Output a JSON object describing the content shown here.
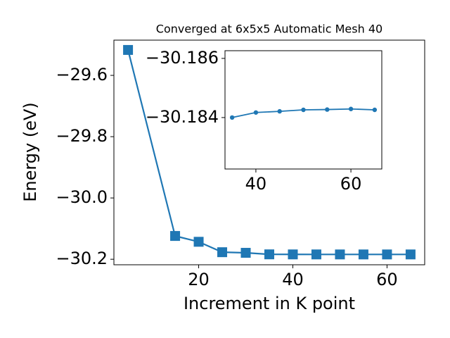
{
  "chart_data": [
    {
      "type": "line",
      "title": "Converged at 6x5x5 Automatic Mesh 40",
      "x_label": "Increment in K point",
      "y_label": "Energy (eV)",
      "x": [
        5,
        15,
        20,
        25,
        30,
        35,
        40,
        45,
        50,
        55,
        60,
        65
      ],
      "series": [
        {
          "color": "#1f77b4",
          "marker": "square",
          "values": [
            -29.517,
            -30.124,
            -30.143,
            -30.177,
            -30.179,
            -30.184,
            -30.18417,
            -30.18421,
            -30.18426,
            -30.18427,
            -30.18429,
            -30.18426
          ]
        }
      ],
      "xlim": [
        2,
        68
      ],
      "ylim": [
        -30.218,
        -29.485
      ],
      "xticks": [
        20,
        40,
        60
      ],
      "yticks": [
        {
          "value": -30.2,
          "label": "−30.2"
        },
        {
          "value": -30.0,
          "label": "−30.0"
        },
        {
          "value": -29.8,
          "label": "−29.8"
        },
        {
          "value": -29.6,
          "label": "−29.6"
        }
      ]
    },
    {
      "type": "line",
      "x": [
        35,
        40,
        45,
        50,
        55,
        60,
        65
      ],
      "series": [
        {
          "color": "#1f77b4",
          "marker": "circle",
          "values": [
            -30.184,
            -30.18417,
            -30.18421,
            -30.18426,
            -30.18427,
            -30.18429,
            -30.18426
          ]
        }
      ],
      "xlim": [
        33.5,
        66.5
      ],
      "ylim": [
        -30.18226,
        -30.18626
      ],
      "y_inverted": true,
      "xticks": [
        40,
        60
      ],
      "yticks": [
        {
          "value": -30.184,
          "label": "−30.184"
        },
        {
          "value": -30.186,
          "label": "−30.186"
        }
      ]
    }
  ]
}
